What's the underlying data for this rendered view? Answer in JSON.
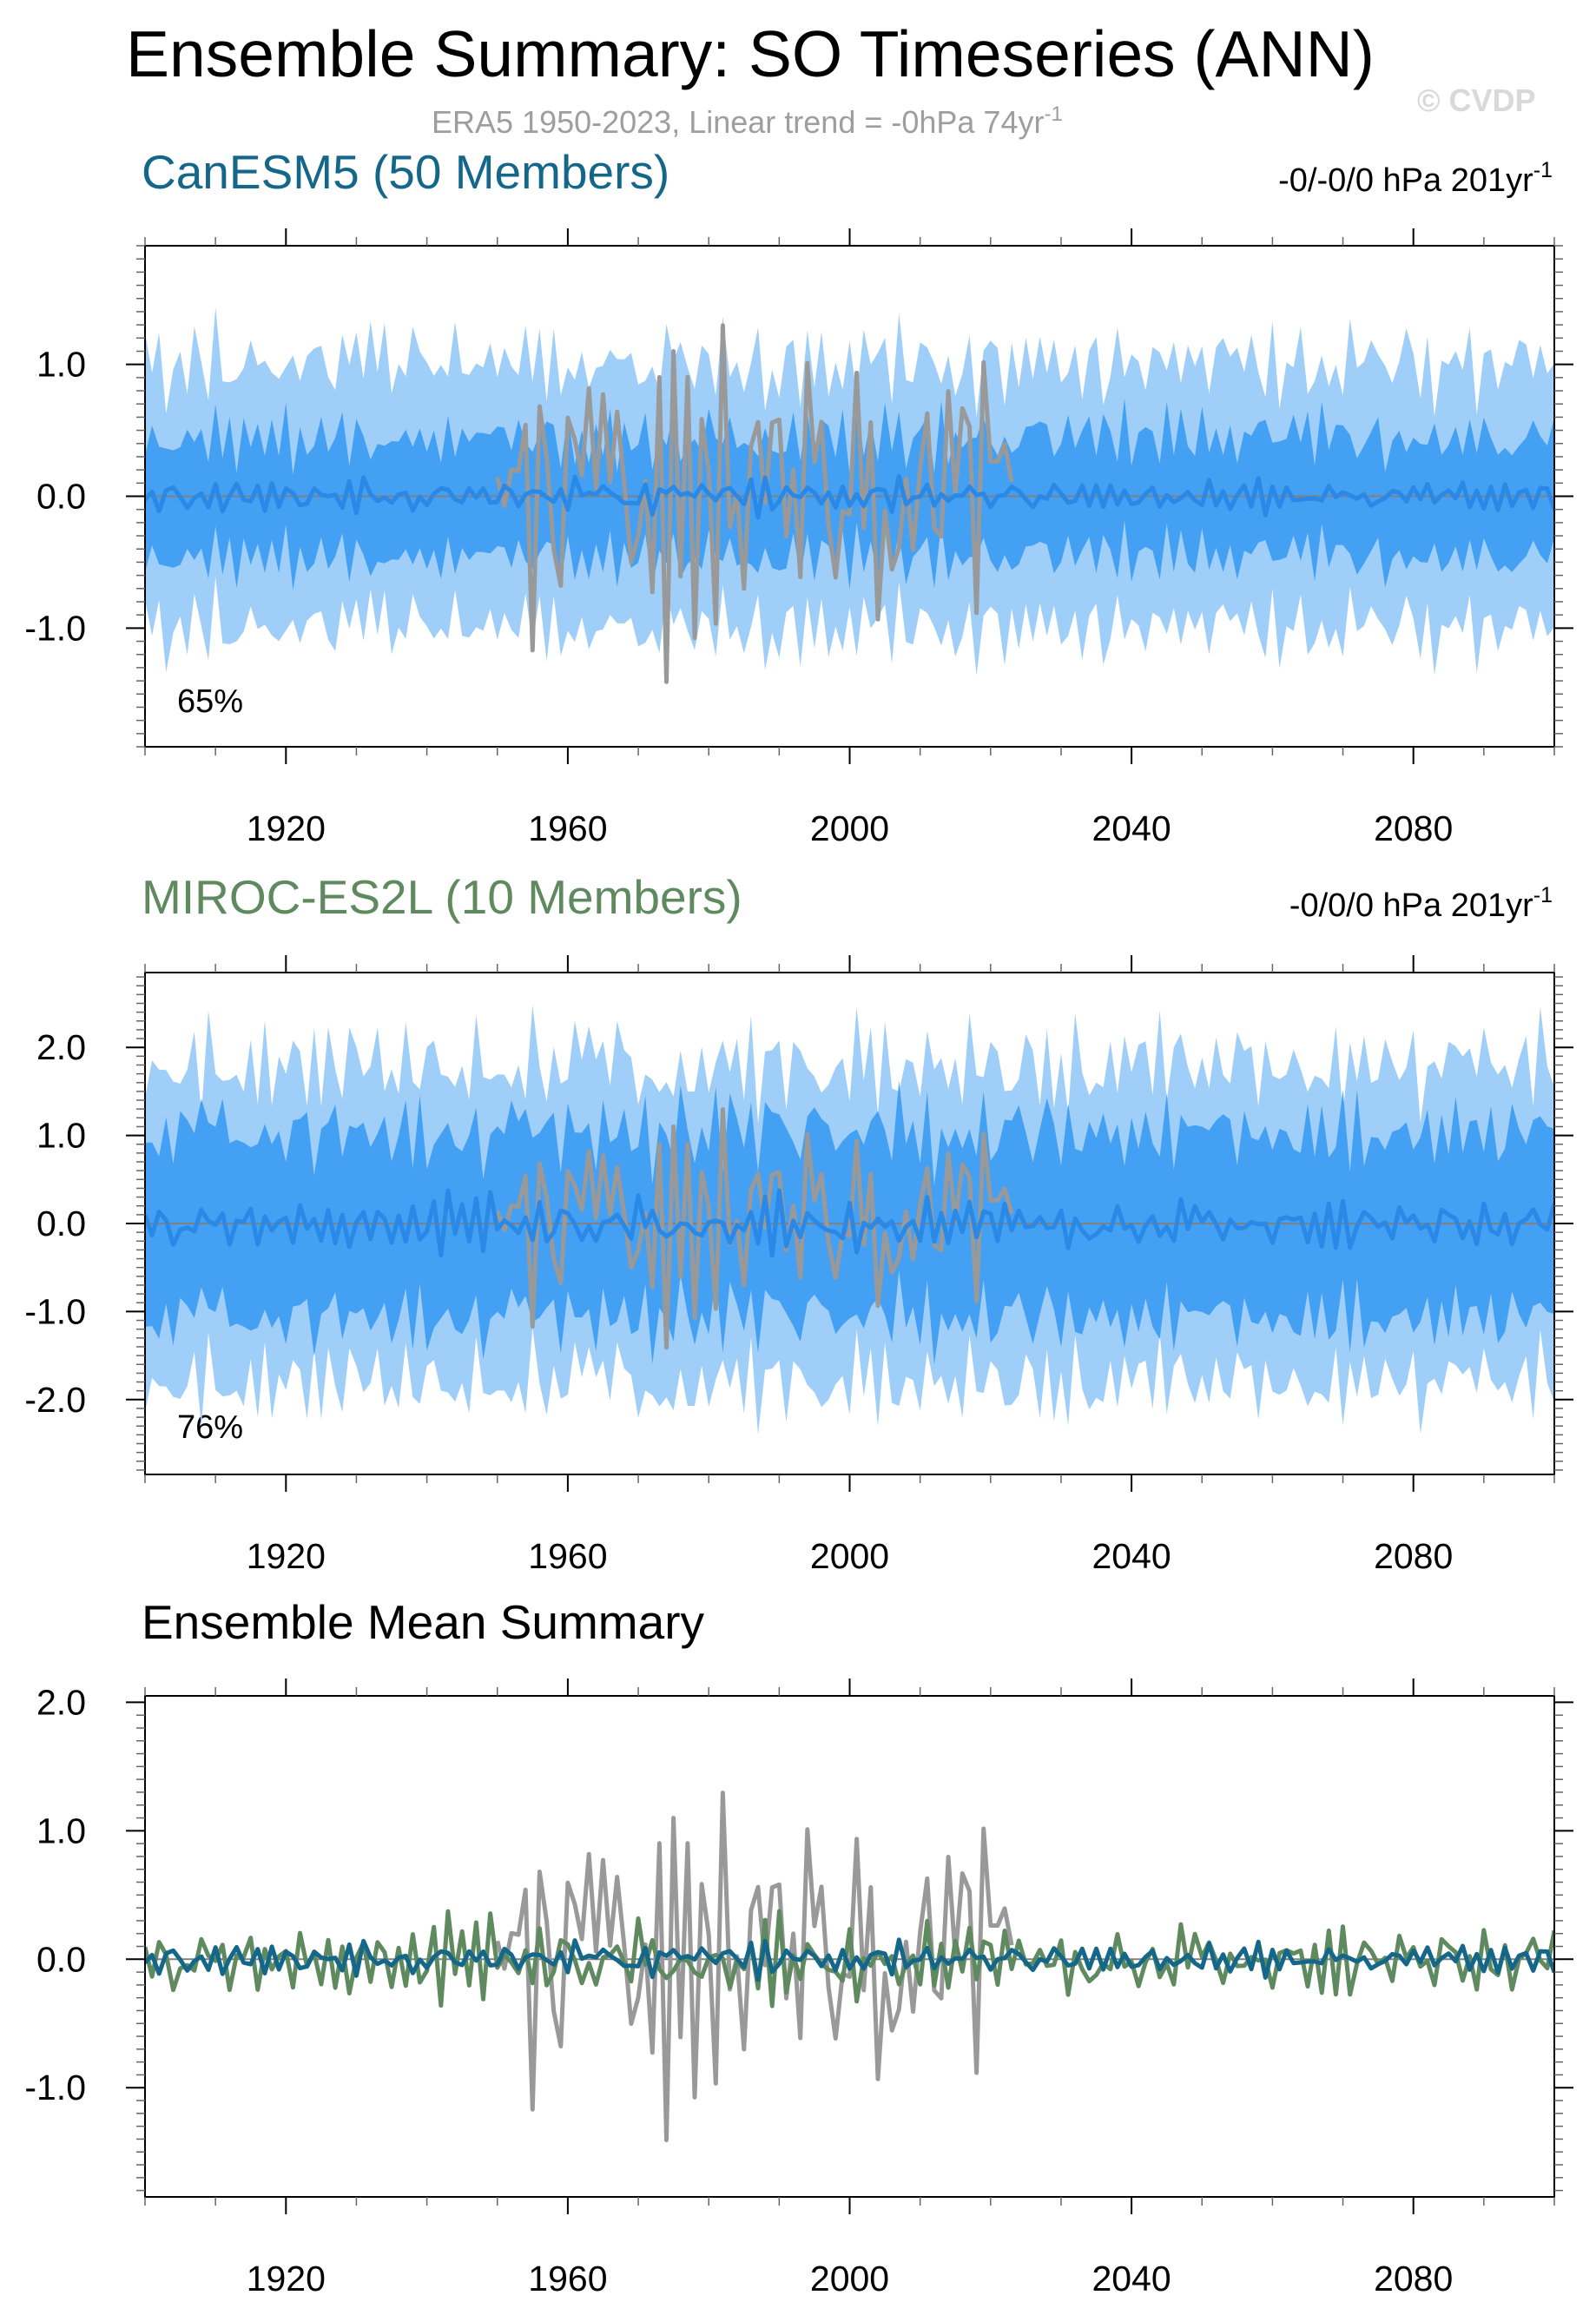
{
  "title": "Ensemble Summary: SO Timeseries (ANN)",
  "subtitle": "ERA5 1950-2023, Linear trend = -0hPa 74yr",
  "subtitle_sup": "-1",
  "watermark": "© CVDP",
  "colors": {
    "spread_outer": "#9fcef8",
    "spread_inner": "#44a0f2",
    "member_mean": "#2a88e6",
    "observations": "#999999",
    "canesm5": "#15678a",
    "miroc": "#5f8a5f",
    "zero_line": "#808080"
  },
  "chart_data": [
    {
      "type": "area",
      "panel": "canesm5",
      "title": "CanESM5 (50 Members)",
      "trend_text": "-0/-0/0 hPa 201yr",
      "trend_sup": "-1",
      "annotation": "65%",
      "xlim": [
        1900,
        2100
      ],
      "ylim": [
        -1.9,
        1.9
      ],
      "x_ticks": [
        1920,
        1960,
        2000,
        2040,
        2080
      ],
      "y_ticks": [
        {
          "v": 1.0,
          "label": "1.0"
        },
        {
          "v": 0.0,
          "label": "0.0"
        },
        {
          "v": -1.0,
          "label": "-1.0"
        }
      ],
      "series": [
        {
          "name": "ensemble spread (outer)",
          "amp": 1.0,
          "noise": 0.18,
          "seed": 11
        },
        {
          "name": "ensemble spread (inner)",
          "amp": 0.45,
          "noise": 0.12,
          "seed": 12
        },
        {
          "name": "ensemble mean",
          "amp": 0.12,
          "noise": 0.08,
          "seed": 13
        },
        {
          "name": "observations",
          "x_start": 1950,
          "x_end": 2023,
          "amp": 1.15,
          "seed": 14
        }
      ]
    },
    {
      "type": "area",
      "panel": "miroc",
      "title": "MIROC-ES2L (10 Members)",
      "trend_text": "-0/0/0 hPa 201yr",
      "trend_sup": "-1",
      "annotation": "76%",
      "xlim": [
        1900,
        2100
      ],
      "ylim": [
        -2.85,
        2.85
      ],
      "x_ticks": [
        1920,
        1960,
        2000,
        2040,
        2080
      ],
      "y_ticks": [
        {
          "v": 2.0,
          "label": "2.0"
        },
        {
          "v": 1.0,
          "label": "1.0"
        },
        {
          "v": 0.0,
          "label": "0.0"
        },
        {
          "v": -1.0,
          "label": "-1.0"
        },
        {
          "v": -2.0,
          "label": "-2.0"
        }
      ],
      "series": [
        {
          "name": "ensemble spread (outer)",
          "amp": 1.8,
          "noise": 0.3,
          "seed": 21
        },
        {
          "name": "ensemble spread (inner)",
          "amp": 1.05,
          "noise": 0.25,
          "seed": 22
        },
        {
          "name": "ensemble mean",
          "amp": 0.28,
          "noise": 0.2,
          "seed": 23
        },
        {
          "name": "observations",
          "x_start": 1950,
          "x_end": 2023,
          "amp": 1.15,
          "seed": 14
        }
      ]
    },
    {
      "type": "line",
      "panel": "mean",
      "title": "Ensemble Mean Summary",
      "xlim": [
        1900,
        2100
      ],
      "ylim": [
        -1.85,
        2.05
      ],
      "x_ticks": [
        1920,
        1960,
        2000,
        2040,
        2080
      ],
      "y_ticks": [
        {
          "v": 2.0,
          "label": "2.0"
        },
        {
          "v": 1.0,
          "label": "1.0"
        },
        {
          "v": 0.0,
          "label": "0.0"
        },
        {
          "v": -1.0,
          "label": "-1.0"
        }
      ],
      "series": [
        {
          "name": "observations",
          "x_start": 1950,
          "x_end": 2023,
          "amp": 1.15,
          "seed": 14
        },
        {
          "name": "CanESM5",
          "amp": 0.12,
          "noise": 0.08,
          "seed": 13
        },
        {
          "name": "MIROC-ES2L",
          "amp": 0.28,
          "noise": 0.2,
          "seed": 23
        }
      ]
    }
  ]
}
